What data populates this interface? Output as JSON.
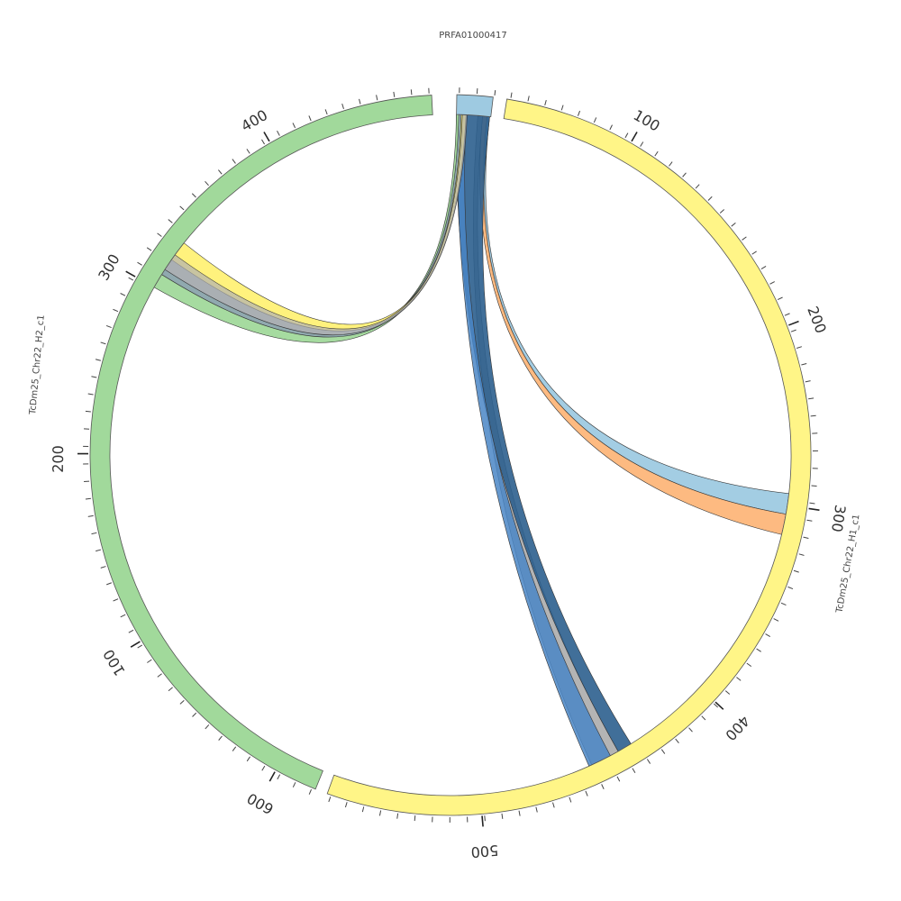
{
  "colors": {
    "h1": "#fff587",
    "h2": "#a1d99b",
    "prfa": "#9ecae1",
    "outline": "#555555",
    "tick": "#444444",
    "ribbons": {
      "blue_light": "#9ecae1",
      "orange": "#fdae6b",
      "blue_dark": "#2c5f8e",
      "blue_mid": "#4a86c5",
      "gray": "#b0b0b0",
      "yellow": "#fff176",
      "green": "#a1d99b",
      "gray_blue": "#8ea3b0"
    }
  },
  "segments": [
    {
      "id": "prfa",
      "label": "PRFA01000417",
      "ticks": []
    },
    {
      "id": "h1",
      "label": "TcDm25_Chr22_H1_c1",
      "ticks": [
        "100",
        "200",
        "300",
        "400",
        "500",
        "600"
      ]
    },
    {
      "id": "h2",
      "label": "TcDm25_Chr22_H2_c1",
      "ticks": [
        "100",
        "200",
        "300",
        "400"
      ]
    }
  ],
  "links": [
    {
      "id": "link-prfa-h1-blue",
      "color": "blue_light"
    },
    {
      "id": "link-prfa-h1-orange",
      "color": "orange"
    },
    {
      "id": "link-prfa-h1-gray-lower",
      "color": "gray"
    },
    {
      "id": "link-prfa-h1-blue-dark",
      "color": "blue_dark"
    },
    {
      "id": "link-prfa-h1-blue-mid",
      "color": "blue_mid"
    },
    {
      "id": "link-prfa-h2-green",
      "color": "green"
    },
    {
      "id": "link-prfa-h2-gray",
      "color": "gray_blue"
    },
    {
      "id": "link-prfa-h2-yellow",
      "color": "yellow"
    },
    {
      "id": "link-prfa-h2-tan",
      "color": "gray"
    }
  ]
}
